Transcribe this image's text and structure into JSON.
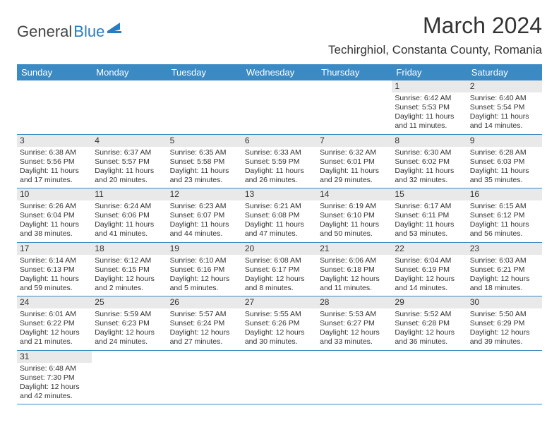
{
  "brand": {
    "general": "General",
    "blue": "Blue"
  },
  "title": "March 2024",
  "location": "Techirghiol, Constanta County, Romania",
  "colors": {
    "header_bg": "#3b8ac4",
    "header_fg": "#ffffff",
    "daynum_bg": "#e9e9e9",
    "border": "#3b8ac4"
  },
  "daynames": [
    "Sunday",
    "Monday",
    "Tuesday",
    "Wednesday",
    "Thursday",
    "Friday",
    "Saturday"
  ],
  "weeks": [
    [
      null,
      null,
      null,
      null,
      null,
      {
        "n": "1",
        "sr": "Sunrise: 6:42 AM",
        "ss": "Sunset: 5:53 PM",
        "d1": "Daylight: 11 hours",
        "d2": "and 11 minutes."
      },
      {
        "n": "2",
        "sr": "Sunrise: 6:40 AM",
        "ss": "Sunset: 5:54 PM",
        "d1": "Daylight: 11 hours",
        "d2": "and 14 minutes."
      }
    ],
    [
      {
        "n": "3",
        "sr": "Sunrise: 6:38 AM",
        "ss": "Sunset: 5:56 PM",
        "d1": "Daylight: 11 hours",
        "d2": "and 17 minutes."
      },
      {
        "n": "4",
        "sr": "Sunrise: 6:37 AM",
        "ss": "Sunset: 5:57 PM",
        "d1": "Daylight: 11 hours",
        "d2": "and 20 minutes."
      },
      {
        "n": "5",
        "sr": "Sunrise: 6:35 AM",
        "ss": "Sunset: 5:58 PM",
        "d1": "Daylight: 11 hours",
        "d2": "and 23 minutes."
      },
      {
        "n": "6",
        "sr": "Sunrise: 6:33 AM",
        "ss": "Sunset: 5:59 PM",
        "d1": "Daylight: 11 hours",
        "d2": "and 26 minutes."
      },
      {
        "n": "7",
        "sr": "Sunrise: 6:32 AM",
        "ss": "Sunset: 6:01 PM",
        "d1": "Daylight: 11 hours",
        "d2": "and 29 minutes."
      },
      {
        "n": "8",
        "sr": "Sunrise: 6:30 AM",
        "ss": "Sunset: 6:02 PM",
        "d1": "Daylight: 11 hours",
        "d2": "and 32 minutes."
      },
      {
        "n": "9",
        "sr": "Sunrise: 6:28 AM",
        "ss": "Sunset: 6:03 PM",
        "d1": "Daylight: 11 hours",
        "d2": "and 35 minutes."
      }
    ],
    [
      {
        "n": "10",
        "sr": "Sunrise: 6:26 AM",
        "ss": "Sunset: 6:04 PM",
        "d1": "Daylight: 11 hours",
        "d2": "and 38 minutes."
      },
      {
        "n": "11",
        "sr": "Sunrise: 6:24 AM",
        "ss": "Sunset: 6:06 PM",
        "d1": "Daylight: 11 hours",
        "d2": "and 41 minutes."
      },
      {
        "n": "12",
        "sr": "Sunrise: 6:23 AM",
        "ss": "Sunset: 6:07 PM",
        "d1": "Daylight: 11 hours",
        "d2": "and 44 minutes."
      },
      {
        "n": "13",
        "sr": "Sunrise: 6:21 AM",
        "ss": "Sunset: 6:08 PM",
        "d1": "Daylight: 11 hours",
        "d2": "and 47 minutes."
      },
      {
        "n": "14",
        "sr": "Sunrise: 6:19 AM",
        "ss": "Sunset: 6:10 PM",
        "d1": "Daylight: 11 hours",
        "d2": "and 50 minutes."
      },
      {
        "n": "15",
        "sr": "Sunrise: 6:17 AM",
        "ss": "Sunset: 6:11 PM",
        "d1": "Daylight: 11 hours",
        "d2": "and 53 minutes."
      },
      {
        "n": "16",
        "sr": "Sunrise: 6:15 AM",
        "ss": "Sunset: 6:12 PM",
        "d1": "Daylight: 11 hours",
        "d2": "and 56 minutes."
      }
    ],
    [
      {
        "n": "17",
        "sr": "Sunrise: 6:14 AM",
        "ss": "Sunset: 6:13 PM",
        "d1": "Daylight: 11 hours",
        "d2": "and 59 minutes."
      },
      {
        "n": "18",
        "sr": "Sunrise: 6:12 AM",
        "ss": "Sunset: 6:15 PM",
        "d1": "Daylight: 12 hours",
        "d2": "and 2 minutes."
      },
      {
        "n": "19",
        "sr": "Sunrise: 6:10 AM",
        "ss": "Sunset: 6:16 PM",
        "d1": "Daylight: 12 hours",
        "d2": "and 5 minutes."
      },
      {
        "n": "20",
        "sr": "Sunrise: 6:08 AM",
        "ss": "Sunset: 6:17 PM",
        "d1": "Daylight: 12 hours",
        "d2": "and 8 minutes."
      },
      {
        "n": "21",
        "sr": "Sunrise: 6:06 AM",
        "ss": "Sunset: 6:18 PM",
        "d1": "Daylight: 12 hours",
        "d2": "and 11 minutes."
      },
      {
        "n": "22",
        "sr": "Sunrise: 6:04 AM",
        "ss": "Sunset: 6:19 PM",
        "d1": "Daylight: 12 hours",
        "d2": "and 14 minutes."
      },
      {
        "n": "23",
        "sr": "Sunrise: 6:03 AM",
        "ss": "Sunset: 6:21 PM",
        "d1": "Daylight: 12 hours",
        "d2": "and 18 minutes."
      }
    ],
    [
      {
        "n": "24",
        "sr": "Sunrise: 6:01 AM",
        "ss": "Sunset: 6:22 PM",
        "d1": "Daylight: 12 hours",
        "d2": "and 21 minutes."
      },
      {
        "n": "25",
        "sr": "Sunrise: 5:59 AM",
        "ss": "Sunset: 6:23 PM",
        "d1": "Daylight: 12 hours",
        "d2": "and 24 minutes."
      },
      {
        "n": "26",
        "sr": "Sunrise: 5:57 AM",
        "ss": "Sunset: 6:24 PM",
        "d1": "Daylight: 12 hours",
        "d2": "and 27 minutes."
      },
      {
        "n": "27",
        "sr": "Sunrise: 5:55 AM",
        "ss": "Sunset: 6:26 PM",
        "d1": "Daylight: 12 hours",
        "d2": "and 30 minutes."
      },
      {
        "n": "28",
        "sr": "Sunrise: 5:53 AM",
        "ss": "Sunset: 6:27 PM",
        "d1": "Daylight: 12 hours",
        "d2": "and 33 minutes."
      },
      {
        "n": "29",
        "sr": "Sunrise: 5:52 AM",
        "ss": "Sunset: 6:28 PM",
        "d1": "Daylight: 12 hours",
        "d2": "and 36 minutes."
      },
      {
        "n": "30",
        "sr": "Sunrise: 5:50 AM",
        "ss": "Sunset: 6:29 PM",
        "d1": "Daylight: 12 hours",
        "d2": "and 39 minutes."
      }
    ],
    [
      {
        "n": "31",
        "sr": "Sunrise: 6:48 AM",
        "ss": "Sunset: 7:30 PM",
        "d1": "Daylight: 12 hours",
        "d2": "and 42 minutes."
      },
      null,
      null,
      null,
      null,
      null,
      null
    ]
  ]
}
